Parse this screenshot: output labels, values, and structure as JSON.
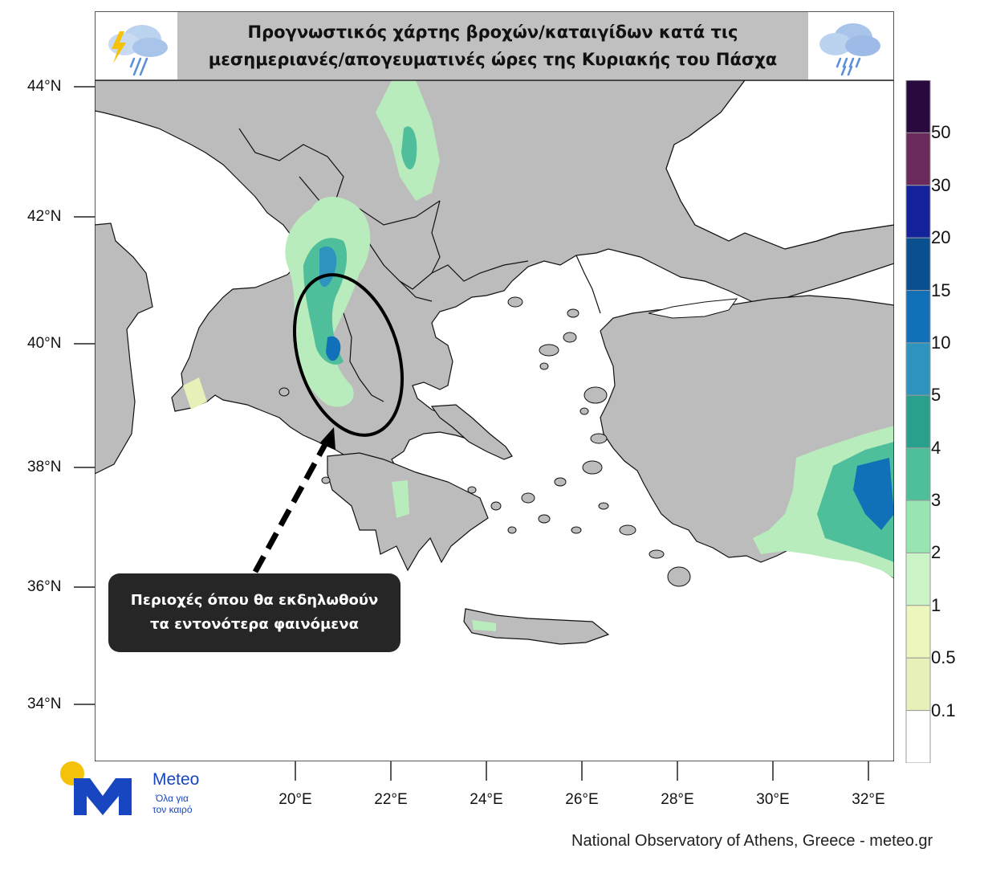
{
  "title": {
    "line1": "Προγνωστικός χάρτης βροχών/καταιγίδων κατά τις",
    "line2": "μεσημεριανές/απογευματινές ώρες της Κυριακής του Πάσχα"
  },
  "icons": {
    "left": "storm-cloud-icon",
    "right": "rain-cloud-icon"
  },
  "lat_labels": [
    "44°N",
    "42°N",
    "40°N",
    "38°N",
    "36°N",
    "34°N"
  ],
  "lon_labels": [
    "20°E",
    "22°E",
    "24°E",
    "26°E",
    "28°E",
    "30°E",
    "32°E"
  ],
  "colorbar": {
    "labels": [
      "50",
      "30",
      "20",
      "15",
      "10",
      "5",
      "4",
      "3",
      "2",
      "1",
      "0.5",
      "0.1"
    ],
    "colors": [
      "#2a0a3e",
      "#6b2a5c",
      "#14239b",
      "#0a4f8f",
      "#1170b8",
      "#2e93bd",
      "#28a08c",
      "#4fbf9b",
      "#97e6b2",
      "#cbf5c6",
      "#ecf6bd",
      "#e7f0b8",
      "#ffffff"
    ]
  },
  "map_colors": {
    "land": "#bcbcbc",
    "sea": "#ffffff",
    "outline": "#111111"
  },
  "callout": {
    "line1": "Περιοχές όπου θα εκδηλωθούν",
    "line2": "τα εντονότερα φαινόμενα"
  },
  "logo": {
    "name": "Meteo",
    "tagline1": "Όλα για",
    "tagline2": "τον καιρό"
  },
  "credit": "National Observatory of Athens, Greece - meteo.gr"
}
